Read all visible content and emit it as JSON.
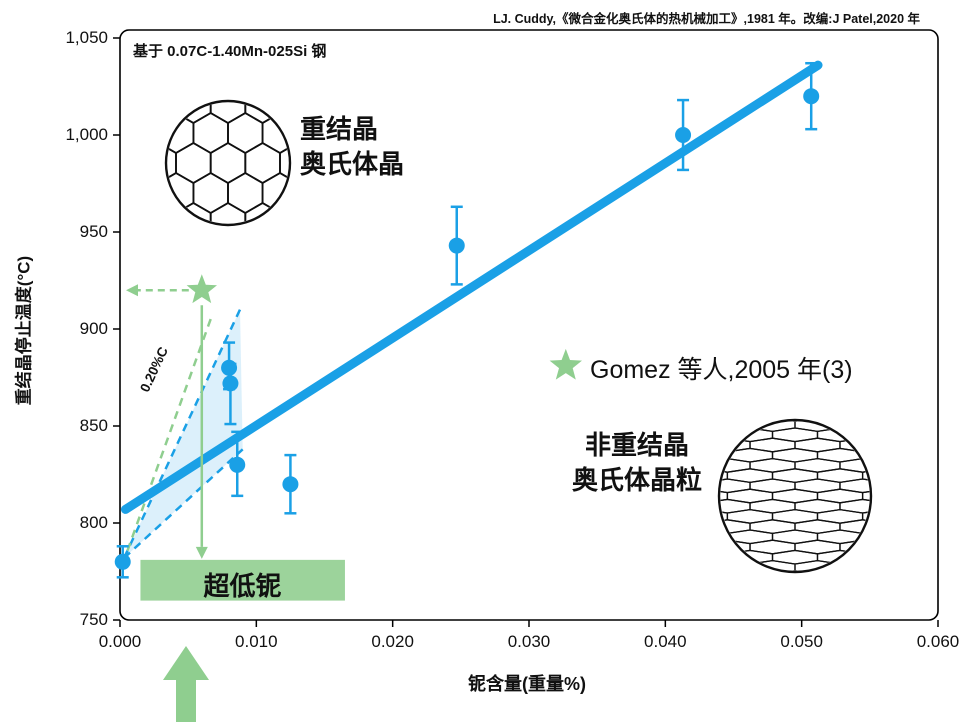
{
  "header": {
    "citation": "LJ. Cuddy,《微合金化奥氏体的热机械加工》,1981 年。改编:J Patel,2020 年"
  },
  "chart_data": {
    "type": "scatter",
    "title_note": "基于 0.07C-1.40Mn-025Si 钢",
    "xlabel": "铌含量(重量%)",
    "ylabel": "重结晶停止温度(°C)",
    "xlim": [
      0.0,
      0.06
    ],
    "ylim": [
      750,
      1050
    ],
    "grid": false,
    "xticks": [
      0.0,
      0.01,
      0.02,
      0.03,
      0.04,
      0.05,
      0.06
    ],
    "xtick_labels": [
      "0.000",
      "0.010",
      "0.020",
      "0.030",
      "0.040",
      "0.050",
      "0.060"
    ],
    "yticks": [
      750,
      800,
      850,
      900,
      950,
      1000,
      1050
    ],
    "ytick_labels": [
      "750",
      "800",
      "850",
      "900",
      "950",
      "1,000",
      "1,050"
    ],
    "series": [
      {
        "type": "scatter",
        "color": "#1aa0e6",
        "points": [
          {
            "x": 0.0002,
            "y": 780,
            "err_up": 8,
            "err_dn": 8
          },
          {
            "x": 0.008,
            "y": 880,
            "err_up": 13,
            "err_dn": 11
          },
          {
            "x": 0.0081,
            "y": 872,
            "err_up": 10,
            "err_dn": 21
          },
          {
            "x": 0.0086,
            "y": 830,
            "err_up": 17,
            "err_dn": 16
          },
          {
            "x": 0.0125,
            "y": 820,
            "err_up": 15,
            "err_dn": 15
          },
          {
            "x": 0.0247,
            "y": 943,
            "err_up": 20,
            "err_dn": 20
          },
          {
            "x": 0.0413,
            "y": 1000,
            "err_up": 18,
            "err_dn": 18
          },
          {
            "x": 0.0507,
            "y": 1020,
            "err_up": 17,
            "err_dn": 17
          }
        ]
      }
    ],
    "trend_line": {
      "x1": 0.0004,
      "y1": 807,
      "x2": 0.0512,
      "y2": 1036
    },
    "guide_lines": [
      {
        "name": "upper-carbon-dashed-line",
        "x1": 0.0003,
        "y1": 782,
        "x2": 0.0088,
        "y2": 910,
        "color": "#1aa0e6"
      },
      {
        "name": "lower-carbon-dashed-line",
        "x1": 0.0003,
        "y1": 782,
        "x2": 0.009,
        "y2": 838,
        "color": "#1aa0e6"
      },
      {
        "name": "green-dashed-guide-line",
        "x1": 0.0002,
        "y1": 779,
        "x2": 0.0068,
        "y2": 908,
        "color": "#8fce8f"
      }
    ],
    "shade_polygon": [
      [
        0.0003,
        782
      ],
      [
        0.0088,
        910
      ],
      [
        0.009,
        838
      ]
    ],
    "carbon_label": "0.20%C",
    "gomez": {
      "x": 0.006,
      "y": 920,
      "label": "Gomez 等人,2005 年(3)"
    },
    "legend_star": {
      "x": 0.0327,
      "y": 881
    },
    "ultra_low_box": {
      "x1": 0.0015,
      "x2": 0.0165,
      "y1": 760,
      "y2": 781
    },
    "annotations": {
      "recrystallized_line1": "重结晶",
      "recrystallized_line2": "奥氏体晶",
      "non_recrystallized_line1": "非重结晶",
      "non_recrystallized_line2": "奥氏体晶粒",
      "ultra_low_nb": "超低铌"
    },
    "colors": {
      "blue": "#1aa0e6",
      "green": "#8fce8f",
      "box_green": "#9cd39b",
      "shade": "rgba(140,205,242,0.30)"
    }
  }
}
